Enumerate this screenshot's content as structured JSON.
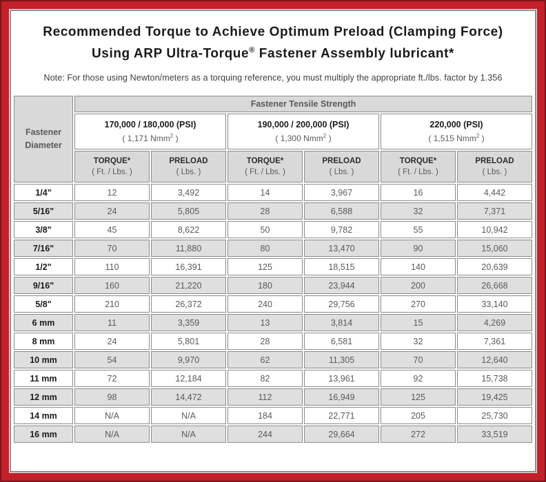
{
  "colors": {
    "frame_red": "#C3202A",
    "frame_dark_red": "#7D151A",
    "panel_border": "#8F8F8F",
    "header_gray": "#D9D9D9",
    "shaded_row_gray": "#DFDFDF",
    "cell_border_gray": "#8A8A8A",
    "data_text": "#5A5A5A",
    "heading_text": "#1A1A1A"
  },
  "title": {
    "line1": "Recommended Torque to Achieve Optimum Preload (Clamping Force)",
    "line2_pre": "Using ARP Ultra-Torque",
    "line2_sup": "®",
    "line2_post": " Fastener Assembly lubricant*"
  },
  "note": "Note: For those using Newton/meters as a torquing reference, you must multiply the appropriate ft./lbs. factor by 1.356",
  "table": {
    "corner_label_line1": "Fastener",
    "corner_label_line2": "Diameter",
    "tensile_header": "Fastener Tensile Strength",
    "strength_groups": [
      {
        "psi": "170,000 / 180,000 (PSI)",
        "nmm_pre": "( 1,171 Nmm",
        "nmm_sup": "2",
        "nmm_post": " )"
      },
      {
        "psi": "190,000 / 200,000 (PSI)",
        "nmm_pre": "( 1,300 Nmm",
        "nmm_sup": "2",
        "nmm_post": " )"
      },
      {
        "psi": "220,000 (PSI)",
        "nmm_pre": "( 1,515 Nmm",
        "nmm_sup": "2",
        "nmm_post": " )"
      }
    ],
    "sub_headers": {
      "torque_label": "TORQUE*",
      "torque_unit": "( Ft. / Lbs. )",
      "preload_label": "PRELOAD",
      "preload_unit": "( Lbs. )"
    },
    "rows": [
      {
        "diameter": "1/4\"",
        "values": [
          "12",
          "3,492",
          "14",
          "3,967",
          "16",
          "4,442"
        ]
      },
      {
        "diameter": "5/16\"",
        "values": [
          "24",
          "5,805",
          "28",
          "6,588",
          "32",
          "7,371"
        ]
      },
      {
        "diameter": "3/8\"",
        "values": [
          "45",
          "8,622",
          "50",
          "9,782",
          "55",
          "10,942"
        ]
      },
      {
        "diameter": "7/16\"",
        "values": [
          "70",
          "11,880",
          "80",
          "13,470",
          "90",
          "15,060"
        ]
      },
      {
        "diameter": "1/2\"",
        "values": [
          "110",
          "16,391",
          "125",
          "18,515",
          "140",
          "20,639"
        ]
      },
      {
        "diameter": "9/16\"",
        "values": [
          "160",
          "21,220",
          "180",
          "23,944",
          "200",
          "26,668"
        ]
      },
      {
        "diameter": "5/8\"",
        "values": [
          "210",
          "26,372",
          "240",
          "29,756",
          "270",
          "33,140"
        ]
      },
      {
        "diameter": "6 mm",
        "values": [
          "11",
          "3,359",
          "13",
          "3,814",
          "15",
          "4,269"
        ]
      },
      {
        "diameter": "8 mm",
        "values": [
          "24",
          "5,801",
          "28",
          "6,581",
          "32",
          "7,361"
        ]
      },
      {
        "diameter": "10 mm",
        "values": [
          "54",
          "9,970",
          "62",
          "11,305",
          "70",
          "12,640"
        ]
      },
      {
        "diameter": "11 mm",
        "values": [
          "72",
          "12,184",
          "82",
          "13,961",
          "92",
          "15,738"
        ]
      },
      {
        "diameter": "12 mm",
        "values": [
          "98",
          "14,472",
          "112",
          "16,949",
          "125",
          "19,425"
        ]
      },
      {
        "diameter": "14 mm",
        "values": [
          "N/A",
          "N/A",
          "184",
          "22,771",
          "205",
          "25,730"
        ]
      },
      {
        "diameter": "16 mm",
        "values": [
          "N/A",
          "N/A",
          "244",
          "29,664",
          "272",
          "33,519"
        ]
      }
    ]
  }
}
